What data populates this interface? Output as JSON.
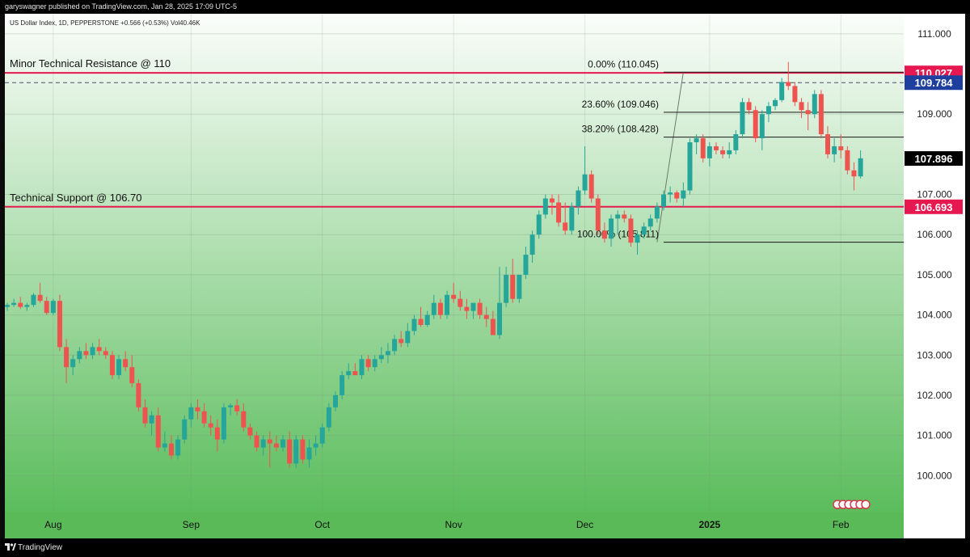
{
  "header": {
    "published_line": "garyswagner published on TradingView.com, Jan 28, 2025 17:09 UTC-5"
  },
  "footer": {
    "brand": "TradingView"
  },
  "chart_data": {
    "type": "candlestick",
    "legend_text": "US Dollar Index, 1D, PEPPERSTONE  +0.566 (+0.53%)  Vol40.46K",
    "ylim": [
      99.1,
      111.5
    ],
    "y_ticks": [
      100,
      101,
      102,
      103,
      104,
      105,
      106,
      107,
      109,
      111
    ],
    "y_tick_labels": [
      "100.000",
      "101.000",
      "102.000",
      "103.000",
      "104.000",
      "105.000",
      "106.000",
      "107.000",
      "109.000",
      "111.000"
    ],
    "x_labels": [
      "Aug",
      "Sep",
      "Oct",
      "Nov",
      "Dec",
      "2025",
      "Feb"
    ],
    "x_label_bar_index": [
      7,
      28,
      48,
      68,
      88,
      107,
      127
    ],
    "bar_count": 132,
    "colors": {
      "up": "#26a69a",
      "down": "#ef5350",
      "red_line": "#e5194f",
      "bg_top": "#fbfdfb",
      "bg_bottom": "#5bbd5c"
    },
    "candles": [
      [
        104.2,
        104.3,
        104.1,
        104.25
      ],
      [
        104.25,
        104.4,
        104.2,
        104.3
      ],
      [
        104.3,
        104.45,
        104.15,
        104.2
      ],
      [
        104.2,
        104.3,
        104.1,
        104.25
      ],
      [
        104.25,
        104.55,
        104.2,
        104.5
      ],
      [
        104.5,
        104.8,
        104.3,
        104.35
      ],
      [
        104.35,
        104.45,
        104.0,
        104.05
      ],
      [
        104.05,
        104.4,
        104.0,
        104.35
      ],
      [
        104.35,
        104.5,
        103.1,
        103.2
      ],
      [
        103.2,
        103.4,
        102.3,
        102.7
      ],
      [
        102.7,
        103.0,
        102.5,
        102.9
      ],
      [
        102.9,
        103.2,
        102.8,
        103.1
      ],
      [
        103.1,
        103.3,
        102.9,
        103.0
      ],
      [
        103.0,
        103.3,
        102.9,
        103.2
      ],
      [
        103.2,
        103.4,
        103.0,
        103.1
      ],
      [
        103.1,
        103.2,
        102.9,
        103.0
      ],
      [
        103.0,
        103.1,
        102.4,
        102.5
      ],
      [
        102.5,
        103.0,
        102.4,
        102.9
      ],
      [
        102.9,
        103.1,
        102.6,
        102.7
      ],
      [
        102.7,
        103.0,
        102.2,
        102.3
      ],
      [
        102.3,
        102.4,
        101.6,
        101.7
      ],
      [
        101.7,
        101.9,
        101.2,
        101.3
      ],
      [
        101.3,
        101.6,
        101.0,
        101.5
      ],
      [
        101.5,
        101.7,
        100.6,
        100.7
      ],
      [
        100.7,
        101.1,
        100.6,
        100.8
      ],
      [
        100.8,
        101.0,
        100.4,
        100.5
      ],
      [
        100.5,
        101.0,
        100.4,
        100.9
      ],
      [
        100.9,
        101.5,
        100.8,
        101.4
      ],
      [
        101.4,
        101.8,
        101.2,
        101.7
      ],
      [
        101.7,
        101.9,
        101.4,
        101.6
      ],
      [
        101.6,
        101.8,
        101.2,
        101.3
      ],
      [
        101.3,
        101.5,
        101.0,
        101.2
      ],
      [
        101.2,
        101.4,
        100.6,
        100.9
      ],
      [
        100.9,
        101.8,
        100.8,
        101.7
      ],
      [
        101.7,
        101.8,
        101.5,
        101.75
      ],
      [
        101.75,
        101.9,
        101.5,
        101.6
      ],
      [
        101.6,
        101.8,
        101.1,
        101.2
      ],
      [
        101.2,
        101.3,
        100.9,
        101.0
      ],
      [
        101.0,
        101.1,
        100.6,
        100.7
      ],
      [
        100.7,
        101.0,
        100.5,
        100.9
      ],
      [
        100.9,
        101.1,
        100.2,
        100.8
      ],
      [
        100.8,
        101.0,
        100.6,
        100.7
      ],
      [
        100.7,
        101.0,
        100.6,
        100.9
      ],
      [
        100.9,
        101.1,
        100.2,
        100.3
      ],
      [
        100.3,
        101.0,
        100.2,
        100.9
      ],
      [
        100.9,
        101.0,
        100.3,
        100.4
      ],
      [
        100.4,
        100.9,
        100.2,
        100.7
      ],
      [
        100.7,
        101.0,
        100.5,
        100.8
      ],
      [
        100.8,
        101.3,
        100.7,
        101.2
      ],
      [
        101.2,
        101.8,
        101.1,
        101.7
      ],
      [
        101.7,
        102.1,
        101.6,
        102.0
      ],
      [
        102.0,
        102.6,
        101.9,
        102.5
      ],
      [
        102.5,
        102.8,
        102.4,
        102.6
      ],
      [
        102.6,
        102.8,
        102.5,
        102.5
      ],
      [
        102.5,
        103.0,
        102.4,
        102.9
      ],
      [
        102.9,
        103.0,
        102.6,
        102.7
      ],
      [
        102.7,
        103.0,
        102.6,
        102.9
      ],
      [
        102.9,
        103.2,
        102.8,
        103.0
      ],
      [
        103.0,
        103.3,
        102.8,
        103.1
      ],
      [
        103.1,
        103.5,
        103.0,
        103.4
      ],
      [
        103.4,
        103.6,
        103.2,
        103.3
      ],
      [
        103.3,
        103.8,
        103.2,
        103.6
      ],
      [
        103.6,
        104.0,
        103.5,
        103.9
      ],
      [
        103.9,
        104.2,
        103.7,
        103.75
      ],
      [
        103.75,
        104.1,
        103.7,
        104.0
      ],
      [
        104.0,
        104.5,
        103.9,
        104.3
      ],
      [
        104.3,
        104.4,
        103.9,
        104.0
      ],
      [
        104.0,
        104.6,
        103.9,
        104.5
      ],
      [
        104.5,
        104.8,
        104.3,
        104.4
      ],
      [
        104.4,
        104.6,
        104.1,
        104.2
      ],
      [
        104.2,
        104.4,
        103.9,
        104.1
      ],
      [
        104.1,
        104.3,
        103.9,
        104.3
      ],
      [
        104.3,
        104.4,
        103.9,
        104.0
      ],
      [
        104.0,
        104.2,
        103.7,
        103.9
      ],
      [
        103.9,
        104.1,
        103.5,
        103.5
      ],
      [
        103.5,
        105.2,
        103.4,
        104.3
      ],
      [
        104.3,
        105.2,
        104.2,
        105.0
      ],
      [
        105.0,
        105.4,
        104.3,
        104.4
      ],
      [
        104.4,
        105.0,
        104.3,
        105.0
      ],
      [
        105.0,
        105.7,
        104.9,
        105.5
      ],
      [
        105.5,
        106.1,
        105.3,
        106.0
      ],
      [
        106.0,
        106.6,
        105.9,
        106.5
      ],
      [
        106.5,
        107.0,
        106.4,
        106.9
      ],
      [
        106.9,
        107.0,
        106.5,
        106.8
      ],
      [
        106.8,
        107.0,
        106.2,
        106.3
      ],
      [
        106.3,
        106.8,
        106.0,
        106.1
      ],
      [
        106.1,
        106.8,
        106.0,
        106.7
      ],
      [
        106.7,
        107.2,
        106.5,
        107.1
      ],
      [
        107.1,
        108.2,
        107.0,
        107.5
      ],
      [
        107.5,
        107.6,
        106.8,
        106.9
      ],
      [
        106.9,
        107.0,
        106.0,
        106.1
      ],
      [
        106.1,
        106.3,
        105.8,
        105.9
      ],
      [
        105.9,
        106.5,
        105.7,
        106.4
      ],
      [
        106.4,
        106.6,
        106.0,
        106.5
      ],
      [
        106.5,
        106.6,
        106.3,
        106.4
      ],
      [
        106.4,
        106.5,
        105.7,
        105.8
      ],
      [
        105.8,
        106.1,
        105.5,
        106.0
      ],
      [
        106.0,
        106.3,
        105.9,
        106.2
      ],
      [
        106.2,
        106.5,
        106.1,
        106.4
      ],
      [
        106.4,
        106.8,
        106.3,
        106.7
      ],
      [
        106.7,
        107.1,
        106.6,
        107.0
      ],
      [
        107.0,
        107.2,
        106.8,
        107.05
      ],
      [
        107.05,
        107.1,
        106.8,
        106.9
      ],
      [
        106.9,
        107.3,
        106.7,
        107.1
      ],
      [
        107.1,
        108.4,
        107.0,
        108.3
      ],
      [
        108.3,
        108.5,
        108.0,
        108.4
      ],
      [
        108.4,
        108.5,
        107.8,
        107.9
      ],
      [
        107.9,
        108.3,
        107.7,
        108.2
      ],
      [
        108.2,
        108.3,
        108.0,
        108.1
      ],
      [
        108.1,
        108.2,
        107.9,
        108.0
      ],
      [
        108.0,
        108.3,
        107.9,
        108.1
      ],
      [
        108.1,
        108.6,
        108.0,
        108.5
      ],
      [
        108.5,
        109.4,
        108.4,
        109.3
      ],
      [
        109.3,
        109.4,
        109.0,
        109.1
      ],
      [
        109.1,
        109.2,
        108.3,
        108.4
      ],
      [
        108.4,
        109.1,
        108.1,
        109.0
      ],
      [
        109.0,
        109.3,
        108.8,
        109.2
      ],
      [
        109.2,
        109.4,
        109.1,
        109.35
      ],
      [
        109.35,
        109.9,
        109.3,
        109.8
      ],
      [
        109.8,
        110.3,
        109.6,
        109.7
      ],
      [
        109.7,
        109.8,
        109.2,
        109.3
      ],
      [
        109.3,
        109.4,
        108.9,
        109.1
      ],
      [
        109.1,
        109.3,
        108.6,
        109.0
      ],
      [
        109.0,
        109.6,
        108.9,
        109.5
      ],
      [
        109.5,
        109.6,
        108.4,
        108.5
      ],
      [
        108.5,
        108.7,
        107.9,
        108.0
      ],
      [
        108.0,
        108.4,
        107.8,
        108.2
      ],
      [
        108.2,
        108.5,
        107.9,
        108.1
      ],
      [
        108.1,
        108.2,
        107.5,
        107.6
      ],
      [
        107.6,
        107.8,
        107.1,
        107.45
      ],
      [
        107.45,
        108.1,
        107.4,
        107.9
      ]
    ],
    "horizontal_levels": [
      {
        "value": 110.027,
        "style": "red"
      },
      {
        "value": 106.693,
        "style": "red"
      },
      {
        "value": 109.784,
        "style": "dashed"
      }
    ],
    "annotations": [
      {
        "text": "Minor Technical Resistance @ 110",
        "value": 110.027
      },
      {
        "text": "Technical Support @ 106.70",
        "value": 106.693
      }
    ],
    "fibonacci": {
      "start_bar": 99,
      "end_bar": 100,
      "levels": [
        {
          "label": "0.00% (110.045)",
          "value": 110.045
        },
        {
          "label": "23.60% (109.046)",
          "value": 109.046
        },
        {
          "label": "38.20% (108.428)",
          "value": 108.428
        },
        {
          "label": "100.00% (105.811)",
          "value": 105.811
        }
      ]
    },
    "price_tags": [
      {
        "label": "110.027",
        "value": 110.027,
        "bg": "#e5194f",
        "fg": "#ffffff"
      },
      {
        "label": "109.784",
        "value": 109.784,
        "bg": "#1e3f9e",
        "fg": "#ffffff"
      },
      {
        "label": "107.896",
        "value": 107.896,
        "bg": "#000000",
        "fg": "#ffffff"
      },
      {
        "label": "106.693",
        "value": 106.693,
        "bg": "#e5194f",
        "fg": "#ffffff"
      }
    ]
  }
}
